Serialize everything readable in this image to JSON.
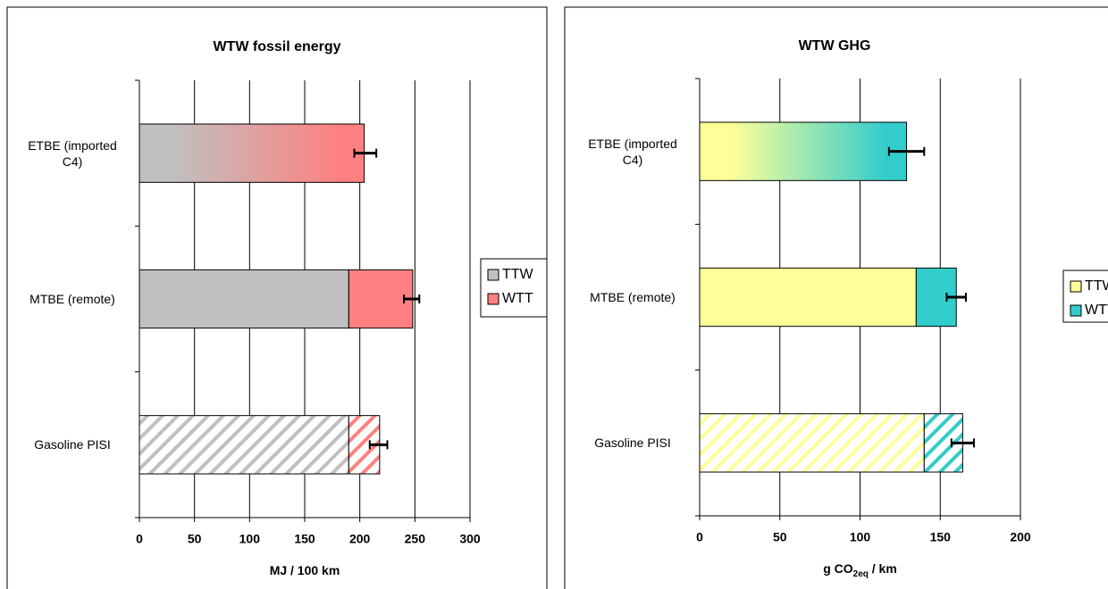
{
  "chart_data": [
    {
      "type": "stacked_barh",
      "title": "WTW fossil energy",
      "xlabel": [
        "MJ / 100 km"
      ],
      "categories": [
        "ETBE (imported C4)",
        "MTBE (remote)",
        "Gasoline PISI"
      ],
      "bar_styles": [
        "gradient",
        "solid",
        "hatched"
      ],
      "series": [
        {
          "name": "TTW",
          "color": "#c0c0c0",
          "values": [
            190,
            190,
            190
          ]
        },
        {
          "name": "WTT",
          "color": "#ff8080",
          "values": [
            14,
            58,
            28
          ]
        }
      ],
      "error_center": [
        205,
        247,
        217
      ],
      "errors": [
        10,
        7,
        8
      ],
      "xlim": [
        0,
        300
      ],
      "xticks": [
        0,
        50,
        100,
        150,
        200,
        250,
        300
      ],
      "grid": true,
      "legend": "right"
    },
    {
      "type": "stacked_barh",
      "title": "WTW GHG",
      "xlabel": [
        "g CO",
        "2eq",
        " / km"
      ],
      "categories": [
        "ETBE (imported C4)",
        "MTBE (remote)",
        "Gasoline PISI"
      ],
      "bar_styles": [
        "gradient",
        "solid",
        "hatched"
      ],
      "series": [
        {
          "name": "TTW",
          "color": "#ffff99",
          "values": [
            129,
            135,
            140
          ]
        },
        {
          "name": "WTT",
          "color": "#33cccc",
          "values": [
            0,
            25,
            24
          ]
        }
      ],
      "error_center": [
        129,
        160,
        164
      ],
      "errors": [
        11,
        6,
        7
      ],
      "xlim": [
        0,
        200
      ],
      "xticks": [
        0,
        50,
        100,
        150,
        200
      ],
      "grid": true,
      "legend": "right"
    }
  ]
}
